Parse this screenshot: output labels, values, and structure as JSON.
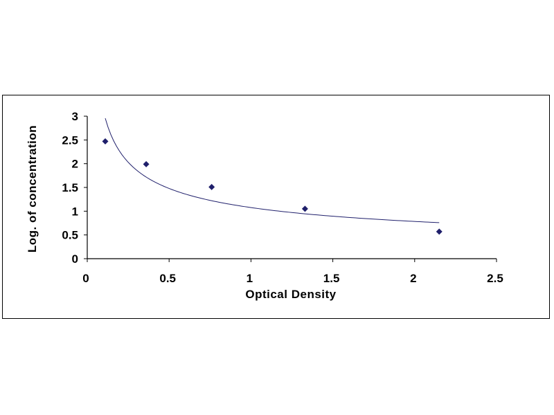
{
  "chart_data": {
    "type": "scatter",
    "title": "",
    "xlabel": "Optical Density",
    "ylabel": "Log. of concentration",
    "xlim": [
      0,
      2.5
    ],
    "ylim": [
      0,
      3
    ],
    "x_ticks": [
      "0",
      "0.5",
      "1",
      "1.5",
      "2",
      "2.5"
    ],
    "y_ticks": [
      "0",
      "0.5",
      "1",
      "1.5",
      "2",
      "2.5",
      "3"
    ],
    "grid": false,
    "legend": "none",
    "series": [
      {
        "x": [
          0.11,
          0.36,
          0.76,
          1.33,
          2.15
        ],
        "y": [
          2.47,
          1.99,
          1.51,
          1.05,
          0.57
        ],
        "color": "#1f1f6b",
        "marker": "diamond",
        "trendline": "smooth fitted curve"
      }
    ]
  }
}
